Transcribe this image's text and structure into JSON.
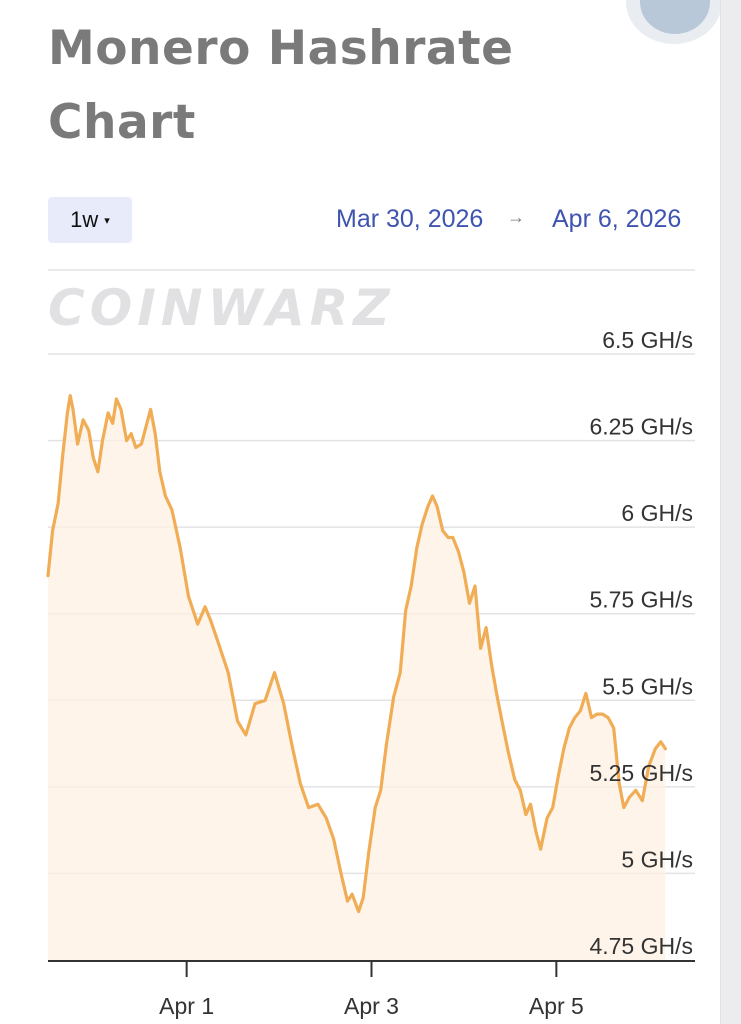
{
  "header": {
    "title": "Monero Hashrate Chart"
  },
  "controls": {
    "range_label": "1w",
    "range_caret": "▾",
    "start_date": "Mar 30, 2026",
    "arrow": "→",
    "end_date": "Apr 6, 2026"
  },
  "watermark": "COINWARZ",
  "colors": {
    "line": "#f0ad55",
    "fill": "#fdf0e2",
    "accent": "#3f54b0"
  },
  "chart_data": {
    "type": "area",
    "title": "",
    "xlabel": "",
    "ylabel": "",
    "unit": "GH/s",
    "ylim": [
      4.75,
      6.5
    ],
    "y_ticks": [
      "6.5 GH/s",
      "6.25 GH/s",
      "6 GH/s",
      "5.75 GH/s",
      "5.5 GH/s",
      "5.25 GH/s",
      "5 GH/s",
      "4.75 GH/s"
    ],
    "y_tick_values": [
      6.5,
      6.25,
      6.0,
      5.75,
      5.5,
      5.25,
      5.0,
      4.75
    ],
    "xlim": [
      0,
      7
    ],
    "x_ticks": [
      {
        "x": 1.5,
        "label": "Apr 1"
      },
      {
        "x": 3.5,
        "label": "Apr 3"
      },
      {
        "x": 5.5,
        "label": "Apr 5"
      }
    ],
    "grid": true,
    "series": [
      {
        "values": [
          [
            0.0,
            5.86
          ],
          [
            0.05,
            5.99
          ],
          [
            0.11,
            6.07
          ],
          [
            0.16,
            6.21
          ],
          [
            0.21,
            6.33
          ],
          [
            0.24,
            6.38
          ],
          [
            0.27,
            6.34
          ],
          [
            0.32,
            6.24
          ],
          [
            0.38,
            6.31
          ],
          [
            0.44,
            6.28
          ],
          [
            0.49,
            6.2
          ],
          [
            0.54,
            6.16
          ],
          [
            0.59,
            6.25
          ],
          [
            0.65,
            6.33
          ],
          [
            0.7,
            6.3
          ],
          [
            0.74,
            6.37
          ],
          [
            0.79,
            6.34
          ],
          [
            0.85,
            6.25
          ],
          [
            0.9,
            6.27
          ],
          [
            0.95,
            6.23
          ],
          [
            1.01,
            6.24
          ],
          [
            1.06,
            6.29
          ],
          [
            1.11,
            6.34
          ],
          [
            1.16,
            6.27
          ],
          [
            1.21,
            6.16
          ],
          [
            1.27,
            6.09
          ],
          [
            1.34,
            6.05
          ],
          [
            1.43,
            5.94
          ],
          [
            1.52,
            5.8
          ],
          [
            1.62,
            5.72
          ],
          [
            1.7,
            5.77
          ],
          [
            1.76,
            5.73
          ],
          [
            1.85,
            5.66
          ],
          [
            1.95,
            5.58
          ],
          [
            2.05,
            5.44
          ],
          [
            2.14,
            5.4
          ],
          [
            2.24,
            5.49
          ],
          [
            2.35,
            5.5
          ],
          [
            2.45,
            5.58
          ],
          [
            2.55,
            5.49
          ],
          [
            2.64,
            5.37
          ],
          [
            2.73,
            5.26
          ],
          [
            2.82,
            5.19
          ],
          [
            2.92,
            5.2
          ],
          [
            3.01,
            5.16
          ],
          [
            3.09,
            5.1
          ],
          [
            3.17,
            5.0
          ],
          [
            3.24,
            4.92
          ],
          [
            3.29,
            4.94
          ],
          [
            3.36,
            4.89
          ],
          [
            3.41,
            4.93
          ],
          [
            3.47,
            5.06
          ],
          [
            3.54,
            5.19
          ],
          [
            3.6,
            5.24
          ],
          [
            3.66,
            5.37
          ],
          [
            3.74,
            5.51
          ],
          [
            3.81,
            5.58
          ],
          [
            3.87,
            5.76
          ],
          [
            3.93,
            5.83
          ],
          [
            3.99,
            5.94
          ],
          [
            4.05,
            6.01
          ],
          [
            4.11,
            6.06
          ],
          [
            4.16,
            6.09
          ],
          [
            4.21,
            6.06
          ],
          [
            4.27,
            5.99
          ],
          [
            4.33,
            5.97
          ],
          [
            4.38,
            5.97
          ],
          [
            4.44,
            5.93
          ],
          [
            4.5,
            5.87
          ],
          [
            4.56,
            5.78
          ],
          [
            4.62,
            5.83
          ],
          [
            4.68,
            5.65
          ],
          [
            4.74,
            5.71
          ],
          [
            4.8,
            5.6
          ],
          [
            4.86,
            5.51
          ],
          [
            4.92,
            5.43
          ],
          [
            4.98,
            5.35
          ],
          [
            5.05,
            5.27
          ],
          [
            5.11,
            5.24
          ],
          [
            5.17,
            5.17
          ],
          [
            5.22,
            5.2
          ],
          [
            5.28,
            5.12
          ],
          [
            5.33,
            5.07
          ],
          [
            5.4,
            5.16
          ],
          [
            5.46,
            5.19
          ],
          [
            5.52,
            5.28
          ],
          [
            5.58,
            5.36
          ],
          [
            5.64,
            5.42
          ],
          [
            5.7,
            5.45
          ],
          [
            5.76,
            5.47
          ],
          [
            5.82,
            5.52
          ],
          [
            5.88,
            5.45
          ],
          [
            5.94,
            5.46
          ],
          [
            6.0,
            5.46
          ],
          [
            6.06,
            5.45
          ],
          [
            6.12,
            5.42
          ],
          [
            6.18,
            5.26
          ],
          [
            6.23,
            5.19
          ],
          [
            6.29,
            5.22
          ],
          [
            6.36,
            5.24
          ],
          [
            6.43,
            5.21
          ],
          [
            6.5,
            5.31
          ],
          [
            6.57,
            5.36
          ],
          [
            6.63,
            5.38
          ],
          [
            6.68,
            5.36
          ]
        ]
      }
    ]
  }
}
